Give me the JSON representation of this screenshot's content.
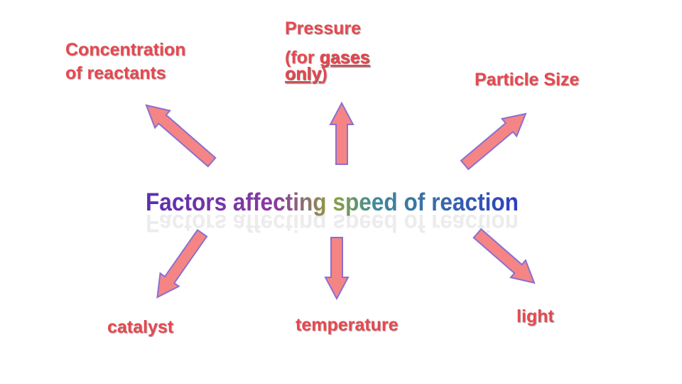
{
  "title": "Factors affecting speed of reaction",
  "nodes": [
    {
      "lines": [
        "Concentration",
        "of reactants"
      ]
    },
    {
      "label": "Pressure",
      "note_parts": [
        "(for ",
        "gases",
        "only",
        ")"
      ]
    },
    {
      "label": "Particle Size"
    },
    {
      "label": "catalyst"
    },
    {
      "label": "temperature"
    },
    {
      "label": "light"
    }
  ]
}
